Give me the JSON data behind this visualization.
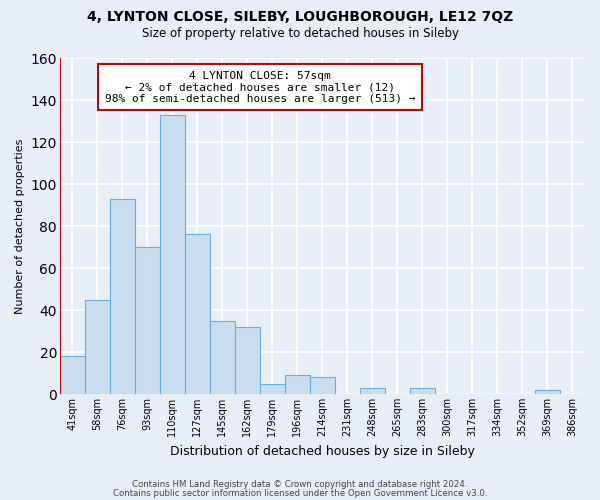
{
  "title": "4, LYNTON CLOSE, SILEBY, LOUGHBOROUGH, LE12 7QZ",
  "subtitle": "Size of property relative to detached houses in Sileby",
  "bar_labels": [
    "41sqm",
    "58sqm",
    "76sqm",
    "93sqm",
    "110sqm",
    "127sqm",
    "145sqm",
    "162sqm",
    "179sqm",
    "196sqm",
    "214sqm",
    "231sqm",
    "248sqm",
    "265sqm",
    "283sqm",
    "300sqm",
    "317sqm",
    "334sqm",
    "352sqm",
    "369sqm",
    "386sqm"
  ],
  "bar_values": [
    18,
    45,
    93,
    70,
    133,
    76,
    35,
    32,
    5,
    9,
    8,
    0,
    3,
    0,
    3,
    0,
    0,
    0,
    0,
    2,
    0
  ],
  "bar_color": "#c8ddf0",
  "bar_edge_color": "#6aaed6",
  "highlight_color": "#cc0000",
  "ylabel": "Number of detached properties",
  "xlabel": "Distribution of detached houses by size in Sileby",
  "ylim": [
    0,
    160
  ],
  "yticks": [
    0,
    20,
    40,
    60,
    80,
    100,
    120,
    140,
    160
  ],
  "annotation_title": "4 LYNTON CLOSE: 57sqm",
  "annotation_line1": "← 2% of detached houses are smaller (12)",
  "annotation_line2": "98% of semi-detached houses are larger (513) →",
  "annotation_box_color": "#ffffff",
  "annotation_box_edge": "#cc0000",
  "footer1": "Contains HM Land Registry data © Crown copyright and database right 2024.",
  "footer2": "Contains public sector information licensed under the Open Government Licence v3.0.",
  "background_color": "#e8eef5",
  "grid_color": "#ffffff"
}
